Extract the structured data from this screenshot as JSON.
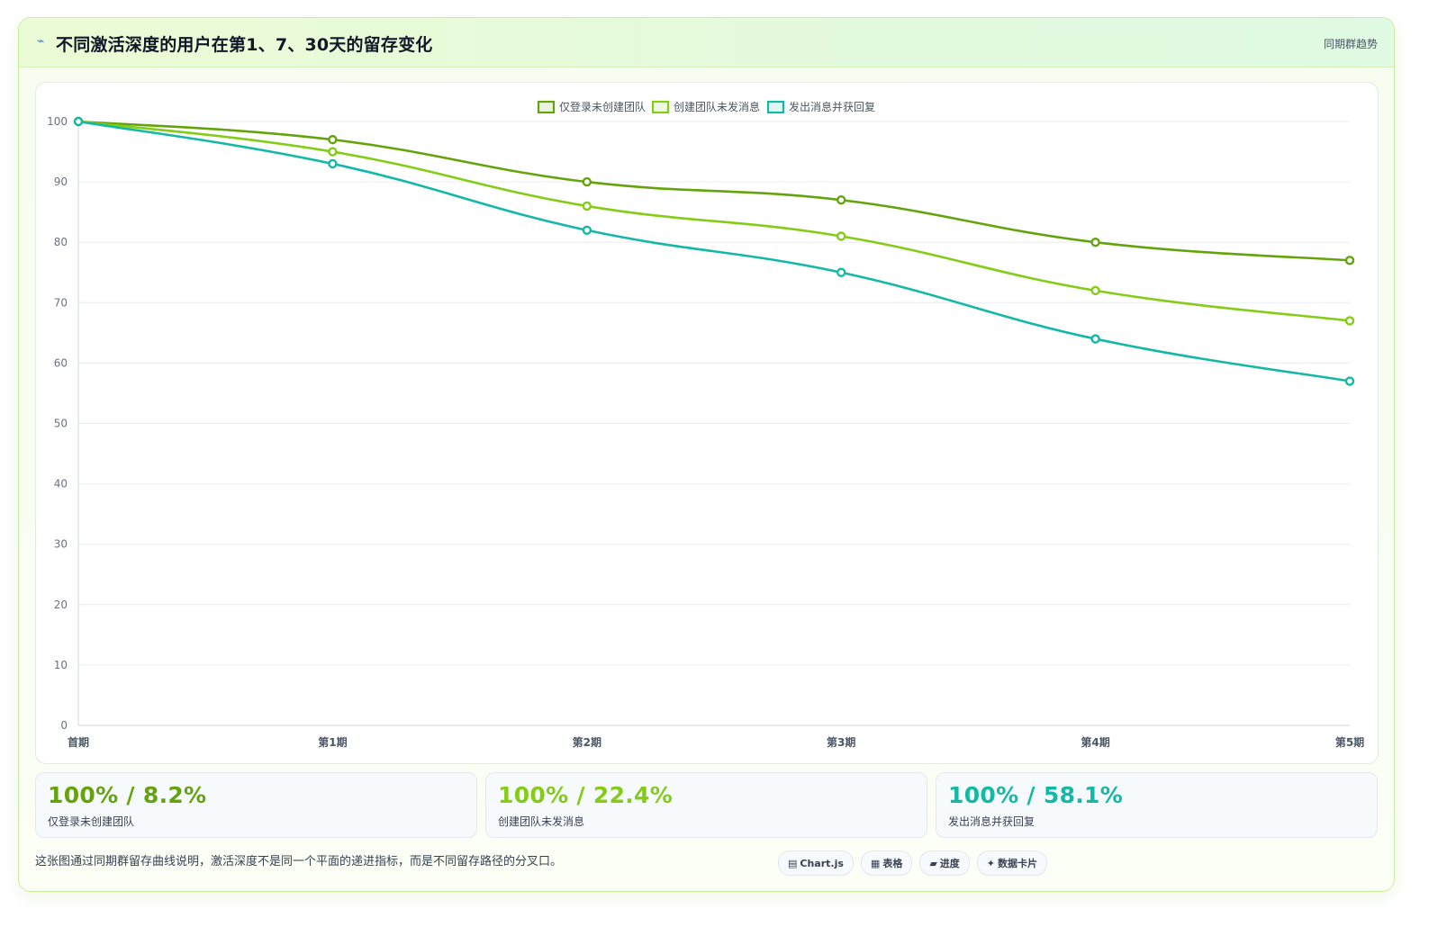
{
  "header": {
    "icon": "lightning-icon",
    "title": "不同激活深度的用户在第1、7、30天的留存变化",
    "tag": "同期群趋势"
  },
  "chart_data": {
    "type": "line",
    "categories": [
      "首期",
      "第1期",
      "第2期",
      "第3期",
      "第4期",
      "第5期"
    ],
    "ylim": [
      0,
      100
    ],
    "yticks": [
      0,
      10,
      20,
      30,
      40,
      50,
      60,
      70,
      80,
      90,
      100
    ],
    "grid": true,
    "legend": "top-center",
    "series": [
      {
        "name": "仅登录未创建团队",
        "color": "#65a30d",
        "values": [
          100,
          97,
          90,
          87,
          80,
          77
        ]
      },
      {
        "name": "创建团队未发消息",
        "color": "#84cc16",
        "values": [
          100,
          95,
          86,
          81,
          72,
          67
        ]
      },
      {
        "name": "发出消息并获回复",
        "color": "#14b8a6",
        "values": [
          100,
          93,
          82,
          75,
          64,
          57
        ]
      }
    ]
  },
  "stats": [
    {
      "value": "100% / 8.2%",
      "label": "仅登录未创建团队",
      "color": "#65a30d"
    },
    {
      "value": "100% / 22.4%",
      "label": "创建团队未发消息",
      "color": "#84cc16"
    },
    {
      "value": "100% / 58.1%",
      "label": "发出消息并获回复",
      "color": "#14b8a6"
    }
  ],
  "note": "这张图通过同期群留存曲线说明，激活深度不是同一个平面的递进指标，而是不同留存路径的分叉口。",
  "pills": [
    {
      "icon": "chart-icon",
      "glyph": "▤",
      "label": "Chart.js"
    },
    {
      "icon": "table-icon",
      "glyph": "▦",
      "label": "表格"
    },
    {
      "icon": "progress-icon",
      "glyph": "▰",
      "label": "进度"
    },
    {
      "icon": "card-icon",
      "glyph": "✦",
      "label": "数据卡片"
    }
  ]
}
